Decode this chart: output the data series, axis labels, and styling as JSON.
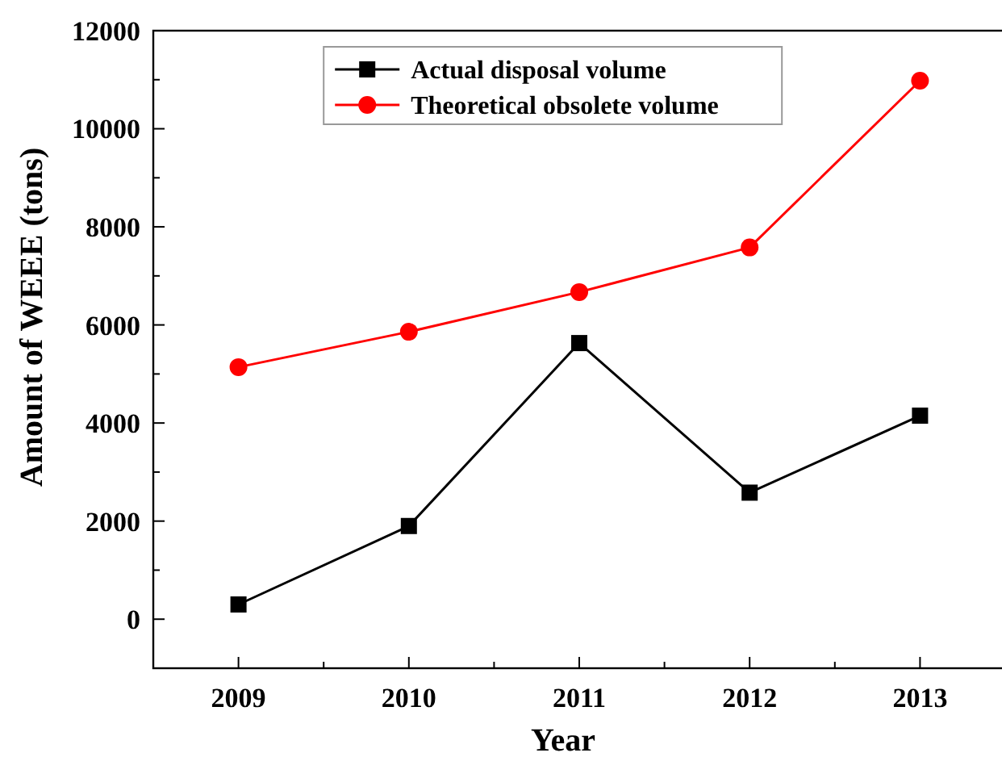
{
  "chart_data": {
    "type": "line",
    "xlabel": "Year",
    "ylabel": "Amount of WEEE (tons)",
    "x": [
      2009,
      2010,
      2011,
      2012,
      2013
    ],
    "series": [
      {
        "name": "Actual disposal volume",
        "color": "#000000",
        "marker": "square",
        "values": [
          300,
          1900,
          5630,
          2580,
          4150
        ]
      },
      {
        "name": "Theoretical obsolete volume",
        "color": "#ff0000",
        "marker": "circle",
        "values": [
          5140,
          5860,
          6670,
          7580,
          10980
        ]
      }
    ],
    "xlim": [
      2008.5,
      2013.5
    ],
    "xticks": [
      2009,
      {
        "value": 2009.5,
        "label": null
      },
      2010,
      {
        "value": 2010.5,
        "label": null
      },
      2011,
      {
        "value": 2011.5,
        "label": null
      },
      2012,
      {
        "value": 2012.5,
        "label": null
      },
      2013
    ],
    "ylim": [
      -1000,
      12000
    ],
    "yticks": [
      {
        "value": -1000,
        "label": null
      },
      0,
      {
        "value": 1000,
        "label": null
      },
      2000,
      {
        "value": 3000,
        "label": null
      },
      4000,
      {
        "value": 5000,
        "label": null
      },
      6000,
      {
        "value": 7000,
        "label": null
      },
      8000,
      {
        "value": 9000,
        "label": null
      },
      10000,
      {
        "value": 11000,
        "label": null
      },
      12000
    ],
    "grid": false,
    "legend": "top",
    "line_style": "solid"
  }
}
